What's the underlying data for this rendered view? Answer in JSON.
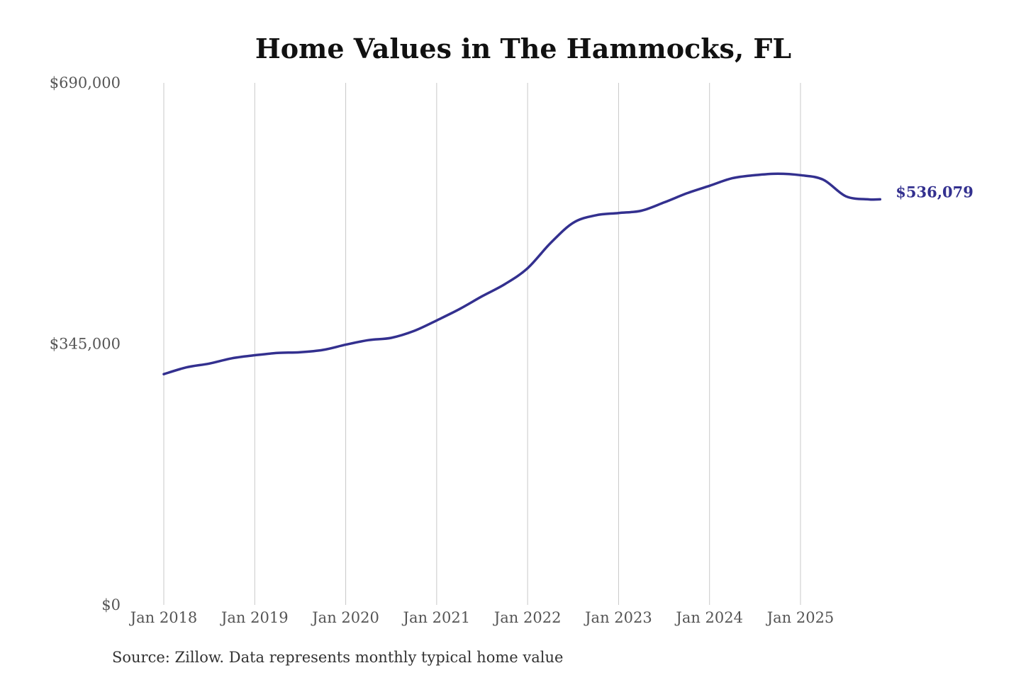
{
  "chart_data": {
    "type": "line",
    "title": "Home Values in The Hammocks, FL",
    "xlabel": "",
    "ylabel": "",
    "ylim": [
      0,
      690000
    ],
    "y_ticks": [
      {
        "value": 0,
        "label": "$0"
      },
      {
        "value": 345000,
        "label": "$345,000"
      },
      {
        "value": 690000,
        "label": "$690,000"
      }
    ],
    "x_ticks": [
      {
        "value": 2018.0,
        "label": "Jan 2018"
      },
      {
        "value": 2019.0,
        "label": "Jan 2019"
      },
      {
        "value": 2020.0,
        "label": "Jan 2020"
      },
      {
        "value": 2021.0,
        "label": "Jan 2021"
      },
      {
        "value": 2022.0,
        "label": "Jan 2022"
      },
      {
        "value": 2023.0,
        "label": "Jan 2023"
      },
      {
        "value": 2024.0,
        "label": "Jan 2024"
      },
      {
        "value": 2025.0,
        "label": "Jan 2025"
      }
    ],
    "xlim": [
      2018.0,
      2025.875
    ],
    "grid": "vertical",
    "line_color": "#33308f",
    "end_label": "$536,079",
    "series": [
      {
        "x": [
          2018.0,
          2018.25,
          2018.5,
          2018.75,
          2019.0,
          2019.25,
          2019.5,
          2019.75,
          2020.0,
          2020.25,
          2020.5,
          2020.75,
          2021.0,
          2021.25,
          2021.5,
          2021.75,
          2022.0,
          2022.25,
          2022.5,
          2022.75,
          2023.0,
          2023.25,
          2023.5,
          2023.75,
          2024.0,
          2024.25,
          2024.5,
          2024.75,
          2025.0,
          2025.25,
          2025.5,
          2025.75,
          2025.875
        ],
        "values": [
          305000,
          314000,
          319000,
          326000,
          330000,
          333000,
          334000,
          337000,
          344000,
          350000,
          353000,
          362000,
          376000,
          391000,
          408000,
          424000,
          445000,
          478000,
          505000,
          515000,
          518000,
          521000,
          532000,
          544000,
          554000,
          564000,
          568000,
          570000,
          568000,
          562000,
          540000,
          536000,
          536079
        ]
      }
    ]
  },
  "source_note": "Source: Zillow. Data represents monthly typical home value"
}
